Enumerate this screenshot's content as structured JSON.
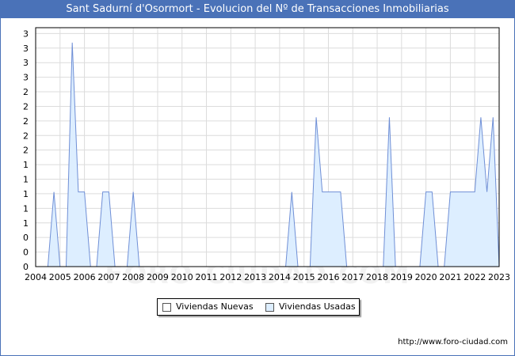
{
  "chart_data": {
    "type": "area",
    "title": "Sant Sadurní d'Osormort - Evolucion del Nº de Transacciones Inmobiliarias",
    "xlabel": "",
    "ylabel": "",
    "x_ticks": [
      "2004",
      "2005",
      "2006",
      "2007",
      "2008",
      "2009",
      "2010",
      "2011",
      "2012",
      "2013",
      "2014",
      "2015",
      "2016",
      "2017",
      "2018",
      "2019",
      "2020",
      "2021",
      "2022",
      "2023"
    ],
    "y_tick_labels": [
      "0",
      "0",
      "0",
      "1",
      "1",
      "1",
      "1",
      "1",
      "2",
      "2",
      "2",
      "2",
      "2",
      "3",
      "3",
      "3",
      "3"
    ],
    "xlim": [
      2004,
      2023
    ],
    "ylim": [
      0,
      3.2
    ],
    "grid": true,
    "legend_position": "bottom",
    "colors": {
      "nuevas": "#ffffff",
      "usadas": "#ddeeff",
      "usadas_line": "#6f8fd6",
      "frame": "#4a72b8"
    },
    "series": [
      {
        "name": "Viviendas Nuevas",
        "points": []
      },
      {
        "name": "Viviendas Usadas",
        "points": [
          [
            2004.5,
            0
          ],
          [
            2004.75,
            1
          ],
          [
            2005.0,
            0
          ],
          [
            2005.25,
            0
          ],
          [
            2005.5,
            3
          ],
          [
            2005.75,
            1
          ],
          [
            2006.0,
            1
          ],
          [
            2006.25,
            0
          ],
          [
            2006.5,
            0
          ],
          [
            2006.75,
            1
          ],
          [
            2007.0,
            1
          ],
          [
            2007.25,
            0
          ],
          [
            2007.75,
            0
          ],
          [
            2008.0,
            1
          ],
          [
            2008.25,
            0
          ],
          [
            2014.25,
            0
          ],
          [
            2014.5,
            1
          ],
          [
            2014.75,
            0
          ],
          [
            2015.25,
            0
          ],
          [
            2015.5,
            2
          ],
          [
            2015.75,
            1
          ],
          [
            2016.0,
            1
          ],
          [
            2016.25,
            1
          ],
          [
            2016.5,
            1
          ],
          [
            2016.75,
            0
          ],
          [
            2018.25,
            0
          ],
          [
            2018.5,
            2
          ],
          [
            2018.75,
            0
          ],
          [
            2019.75,
            0
          ],
          [
            2020.0,
            1
          ],
          [
            2020.25,
            1
          ],
          [
            2020.5,
            0
          ],
          [
            2020.75,
            0
          ],
          [
            2021.0,
            1
          ],
          [
            2021.25,
            1
          ],
          [
            2021.5,
            1
          ],
          [
            2021.75,
            1
          ],
          [
            2022.0,
            1
          ],
          [
            2022.25,
            2
          ],
          [
            2022.5,
            1
          ],
          [
            2022.75,
            2
          ],
          [
            2023.0,
            0
          ]
        ]
      }
    ]
  },
  "legend": {
    "new_label": "Viviendas Nuevas",
    "used_label": "Viviendas Usadas"
  },
  "footer": {
    "source_url": "http://www.foro-ciudad.com"
  },
  "watermark": "FORO-CIUDAD.COM"
}
